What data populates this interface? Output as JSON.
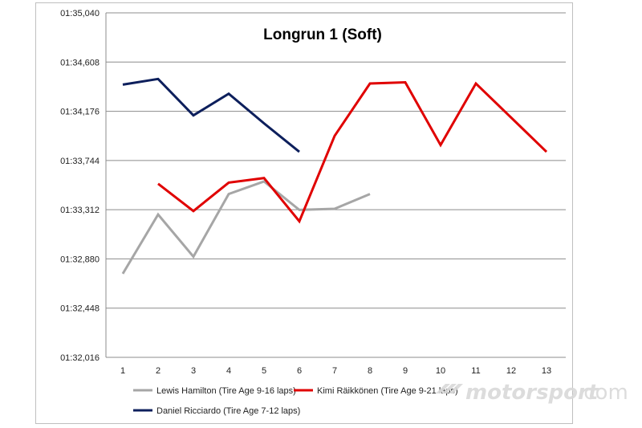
{
  "chart_data": {
    "type": "line",
    "title": "Longrun 1 (Soft)",
    "xlabel": "",
    "ylabel": "",
    "x": [
      "1",
      "2",
      "3",
      "4",
      "5",
      "6",
      "7",
      "8",
      "9",
      "10",
      "11",
      "12",
      "13"
    ],
    "yticks": [
      "01:32,016",
      "01:32,448",
      "01:32,880",
      "01:33,312",
      "01:33,744",
      "01:34,176",
      "01:34,608",
      "01:35,040"
    ],
    "ylim_seconds": [
      92.016,
      95.04
    ],
    "grid": "horizontal",
    "legend_position": "bottom",
    "series": [
      {
        "name": "Lewis Hamilton (Tire Age 9-16 laps)",
        "color": "#a6a6a6",
        "x": [
          1,
          2,
          3,
          4,
          5,
          6,
          7,
          8
        ],
        "values_seconds": [
          92.75,
          93.27,
          92.9,
          93.45,
          93.56,
          93.31,
          93.32,
          93.45
        ]
      },
      {
        "name": "Kimi Räikkönen (Tire Age 9-21 laps)",
        "color": "#e00000",
        "x": [
          2,
          3,
          4,
          5,
          6,
          7,
          8,
          9,
          10,
          11,
          12,
          13
        ],
        "values_seconds": [
          93.54,
          93.3,
          93.55,
          93.59,
          93.21,
          93.96,
          94.42,
          94.43,
          93.88,
          94.42,
          94.12,
          93.82
        ]
      },
      {
        "name": "Daniel Ricciardo (Tire Age 7-12 laps)",
        "color": "#0d1f5c",
        "x": [
          1,
          2,
          3,
          4,
          5,
          6
        ],
        "values_seconds": [
          94.41,
          94.46,
          94.14,
          94.33,
          94.07,
          93.82
        ]
      }
    ]
  },
  "watermark": {
    "brand": "motorsport",
    "suffix": ".com",
    "icon": "motorsport-flag-logo"
  }
}
